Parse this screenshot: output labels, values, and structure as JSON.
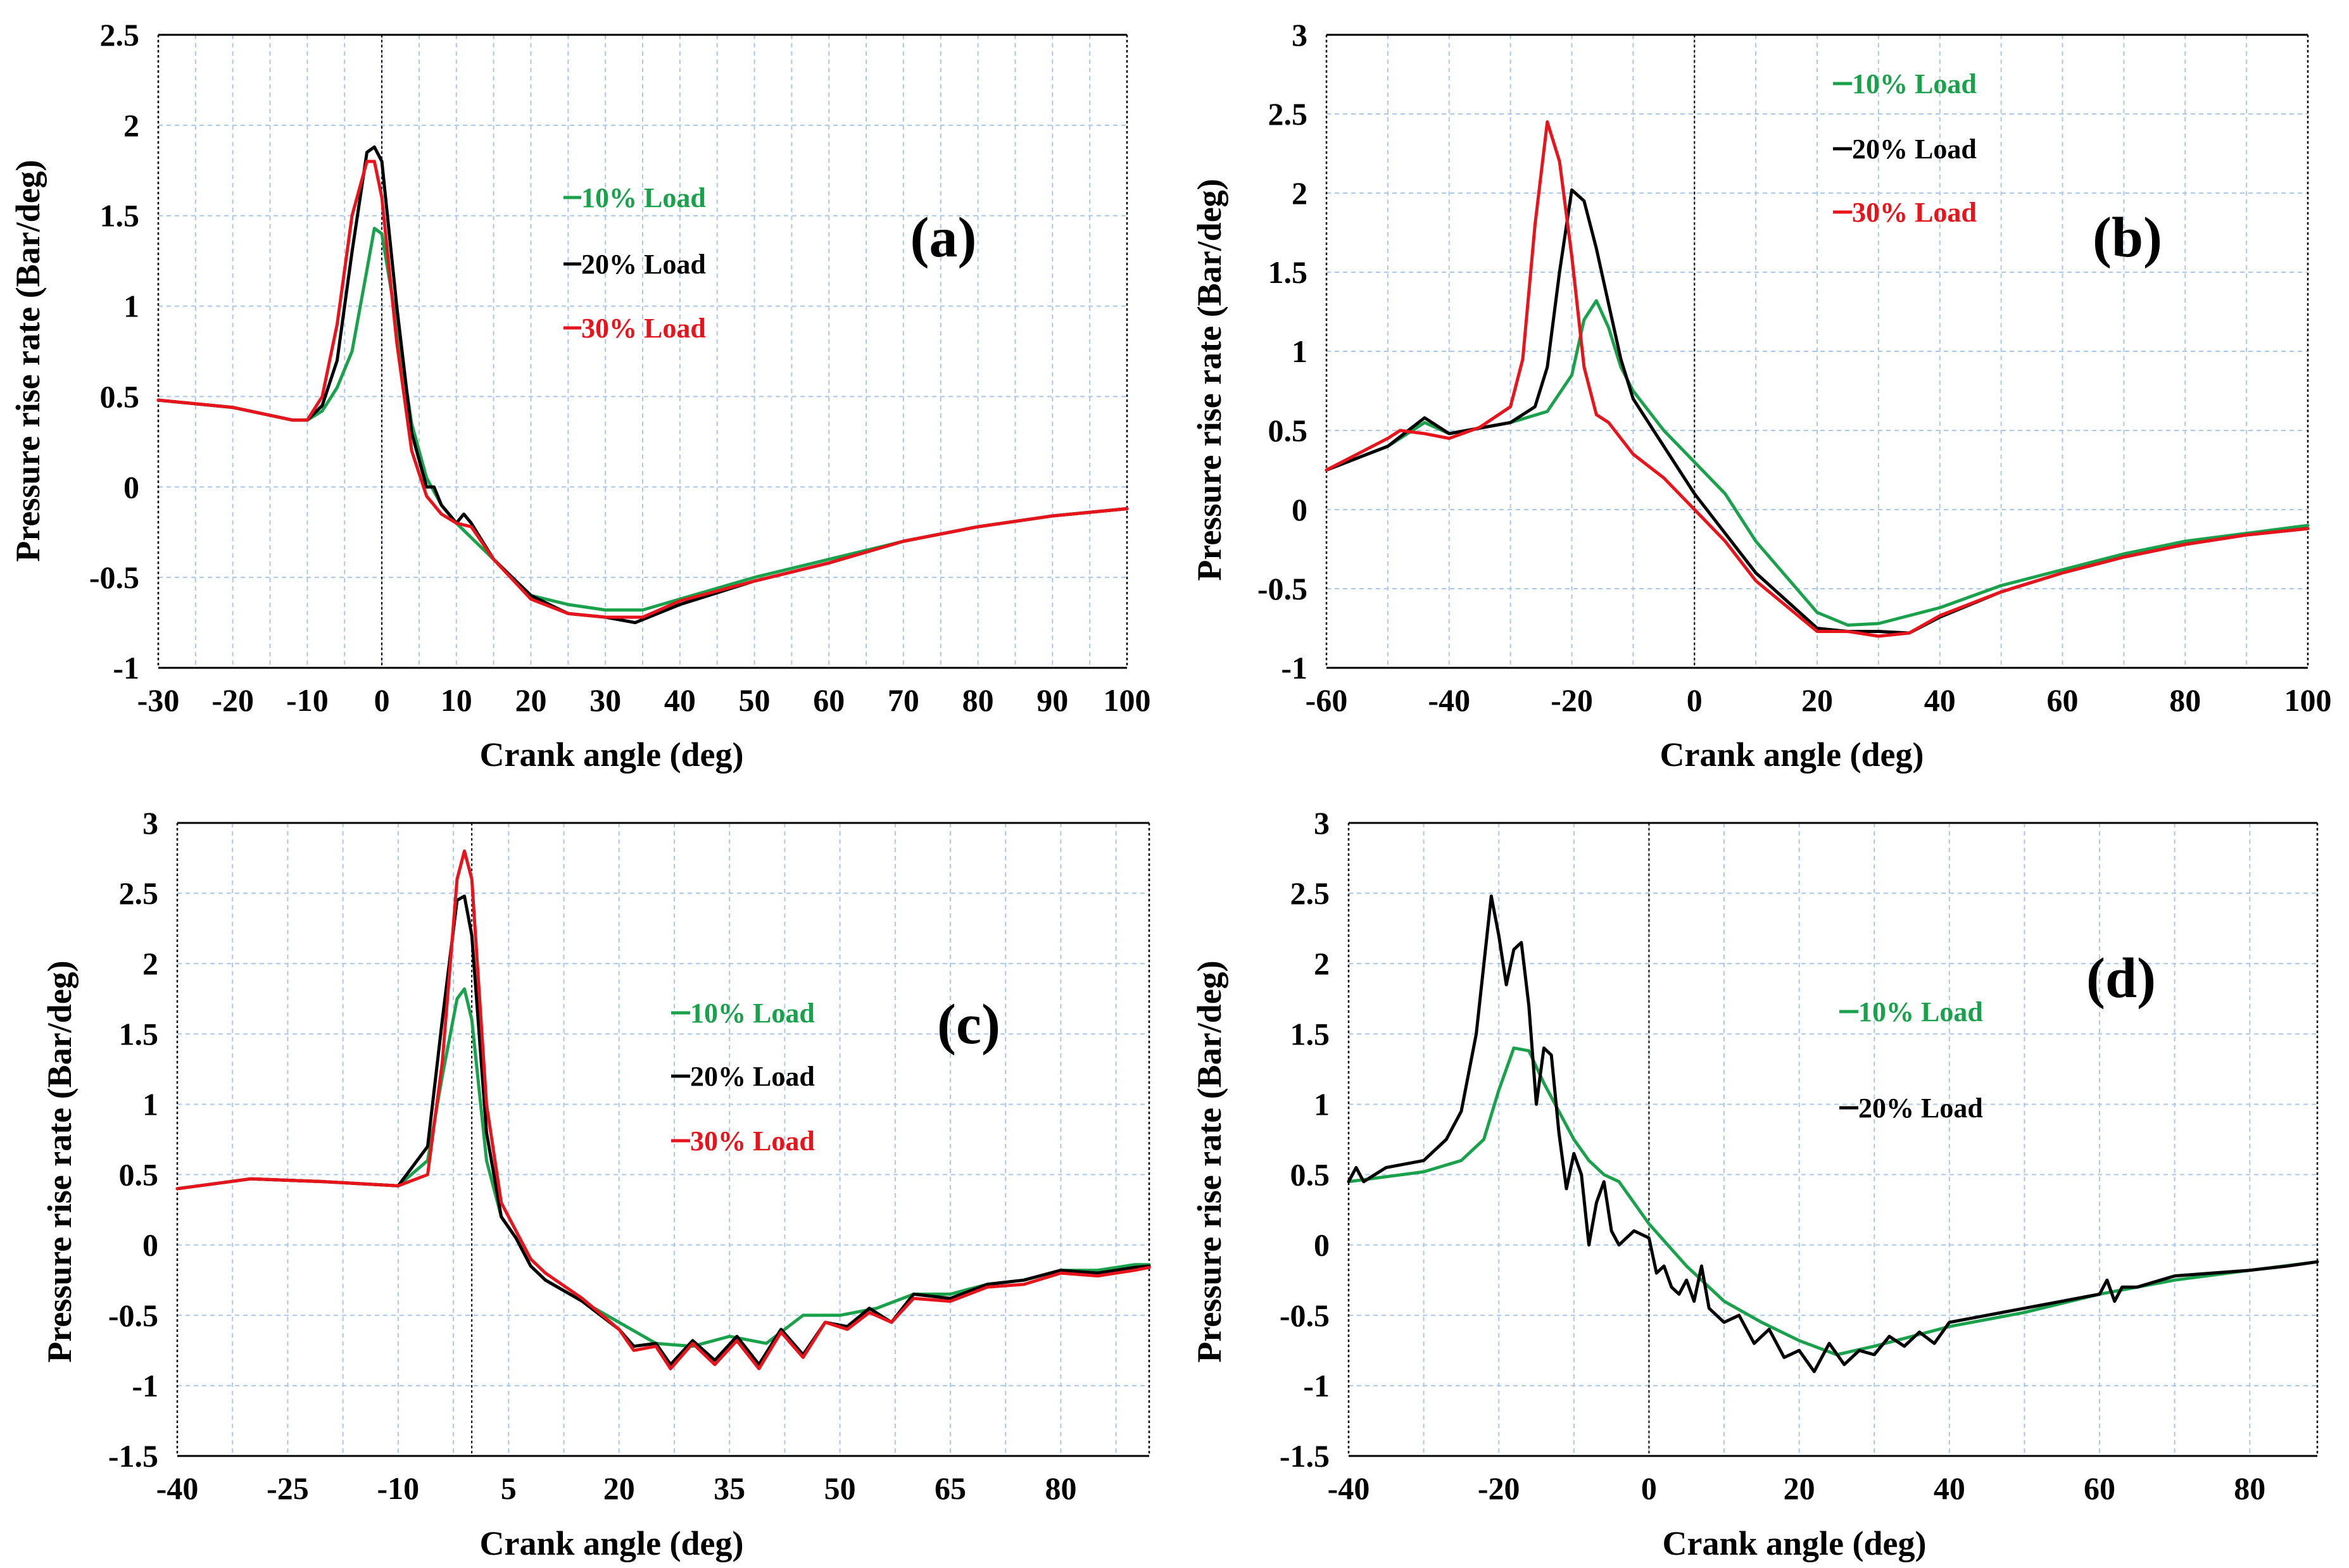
{
  "colors": {
    "green": "#1aa14b",
    "black": "#000000",
    "red": "#e8141b"
  },
  "chart_data": [
    {
      "type": "line",
      "panel": "(a)",
      "xlabel": "Crank angle (deg)",
      "ylabel": "Pressure rise rate (Bar/deg)",
      "xlim": [
        -30,
        100
      ],
      "ylim": [
        -1,
        2.5
      ],
      "xticks": [
        -30,
        -20,
        -10,
        0,
        10,
        20,
        30,
        40,
        50,
        60,
        70,
        80,
        90,
        100
      ],
      "yticks": [
        -1,
        -0.5,
        0,
        0.5,
        1,
        1.5,
        2,
        2.5
      ],
      "legend": [
        "10% Load",
        "20% Load",
        "30% Load"
      ],
      "series": [
        {
          "name": "10% Load",
          "color": "#1aa14b",
          "x": [
            -30,
            -20,
            -12,
            -10,
            -8,
            -6,
            -4,
            -2,
            -1,
            0,
            2,
            4,
            6,
            8,
            10,
            12,
            15,
            20,
            25,
            30,
            35,
            40,
            50,
            60,
            70,
            80,
            90,
            100
          ],
          "y": [
            0.48,
            0.44,
            0.37,
            0.37,
            0.42,
            0.55,
            0.75,
            1.2,
            1.43,
            1.4,
            0.9,
            0.35,
            0.05,
            -0.1,
            -0.2,
            -0.28,
            -0.4,
            -0.6,
            -0.65,
            -0.68,
            -0.68,
            -0.62,
            -0.5,
            -0.4,
            -0.3,
            -0.22,
            -0.16,
            -0.12
          ]
        },
        {
          "name": "20% Load",
          "color": "#000000",
          "x": [
            -30,
            -20,
            -12,
            -10,
            -8,
            -6,
            -4,
            -2,
            -1,
            0,
            2,
            4,
            6,
            7,
            8,
            10,
            11,
            12,
            15,
            20,
            25,
            30,
            34,
            40,
            50,
            60,
            70,
            80,
            90,
            100
          ],
          "y": [
            0.48,
            0.44,
            0.37,
            0.37,
            0.45,
            0.7,
            1.3,
            1.85,
            1.88,
            1.8,
            1.0,
            0.3,
            0.0,
            0.0,
            -0.1,
            -0.2,
            -0.15,
            -0.2,
            -0.4,
            -0.6,
            -0.7,
            -0.72,
            -0.75,
            -0.65,
            -0.52,
            -0.42,
            -0.3,
            -0.22,
            -0.16,
            -0.12
          ]
        },
        {
          "name": "30% Load",
          "color": "#e8141b",
          "x": [
            -30,
            -20,
            -12,
            -10,
            -8,
            -6,
            -4,
            -2,
            -1,
            0,
            2,
            4,
            6,
            8,
            10,
            12,
            15,
            20,
            25,
            30,
            35,
            40,
            50,
            60,
            70,
            80,
            90,
            100
          ],
          "y": [
            0.48,
            0.44,
            0.37,
            0.37,
            0.5,
            0.9,
            1.5,
            1.8,
            1.8,
            1.6,
            0.8,
            0.2,
            -0.05,
            -0.15,
            -0.2,
            -0.22,
            -0.4,
            -0.62,
            -0.7,
            -0.72,
            -0.72,
            -0.63,
            -0.52,
            -0.42,
            -0.3,
            -0.22,
            -0.16,
            -0.12
          ]
        }
      ]
    },
    {
      "type": "line",
      "panel": "(b)",
      "xlabel": "Crank angle (deg)",
      "ylabel": "Pressure rise rate (Bar/deg)",
      "xlim": [
        -60,
        100
      ],
      "ylim": [
        -1,
        3
      ],
      "xticks": [
        -60,
        -40,
        -20,
        0,
        20,
        40,
        60,
        80,
        100
      ],
      "yticks": [
        -1,
        -0.5,
        0,
        0.5,
        1,
        1.5,
        2,
        2.5,
        3
      ],
      "legend": [
        "10% Load",
        "20% Load",
        "30% Load"
      ],
      "series": [
        {
          "name": "10% Load",
          "color": "#1aa14b",
          "x": [
            -60,
            -50,
            -44,
            -40,
            -30,
            -24,
            -20,
            -18,
            -16,
            -14,
            -12,
            -10,
            -5,
            0,
            5,
            10,
            20,
            25,
            30,
            40,
            50,
            60,
            70,
            80,
            90,
            100
          ],
          "y": [
            0.25,
            0.4,
            0.55,
            0.48,
            0.55,
            0.62,
            0.85,
            1.2,
            1.32,
            1.15,
            0.9,
            0.75,
            0.5,
            0.3,
            0.1,
            -0.2,
            -0.65,
            -0.73,
            -0.72,
            -0.62,
            -0.48,
            -0.38,
            -0.28,
            -0.2,
            -0.15,
            -0.1
          ]
        },
        {
          "name": "20% Load",
          "color": "#000000",
          "x": [
            -60,
            -50,
            -44,
            -40,
            -30,
            -26,
            -24,
            -22,
            -20,
            -18,
            -16,
            -14,
            -12,
            -10,
            -5,
            0,
            5,
            10,
            20,
            25,
            30,
            35,
            40,
            50,
            60,
            70,
            80,
            90,
            100
          ],
          "y": [
            0.25,
            0.4,
            0.58,
            0.48,
            0.55,
            0.65,
            0.9,
            1.5,
            2.02,
            1.95,
            1.65,
            1.3,
            0.95,
            0.7,
            0.4,
            0.1,
            -0.15,
            -0.4,
            -0.75,
            -0.77,
            -0.77,
            -0.78,
            -0.68,
            -0.52,
            -0.4,
            -0.3,
            -0.22,
            -0.16,
            -0.12
          ]
        },
        {
          "name": "30% Load",
          "color": "#e8141b",
          "x": [
            -60,
            -50,
            -48,
            -44,
            -40,
            -35,
            -30,
            -28,
            -26,
            -24,
            -22,
            -20,
            -18,
            -16,
            -14,
            -12,
            -10,
            -5,
            0,
            5,
            10,
            20,
            25,
            30,
            35,
            40,
            50,
            60,
            70,
            80,
            90,
            100
          ],
          "y": [
            0.25,
            0.45,
            0.5,
            0.48,
            0.45,
            0.52,
            0.65,
            0.95,
            1.8,
            2.45,
            2.2,
            1.6,
            0.9,
            0.6,
            0.55,
            0.45,
            0.35,
            0.2,
            0.0,
            -0.2,
            -0.45,
            -0.77,
            -0.77,
            -0.8,
            -0.78,
            -0.67,
            -0.52,
            -0.4,
            -0.3,
            -0.22,
            -0.16,
            -0.12
          ]
        }
      ]
    },
    {
      "type": "line",
      "panel": "(c)",
      "xlabel": "Crank angle (deg)",
      "ylabel": "Pressure rise rate (Bar/deg)",
      "xlim": [
        -40,
        92
      ],
      "ylim": [
        -1.5,
        3
      ],
      "xticks": [
        -40,
        -25,
        -10,
        5,
        20,
        35,
        50,
        65,
        80
      ],
      "yticks": [
        -1.5,
        -1,
        -0.5,
        0,
        0.5,
        1,
        1.5,
        2,
        2.5,
        3
      ],
      "legend": [
        "10% Load",
        "20% Load",
        "30% Load"
      ],
      "series": [
        {
          "name": "10% Load",
          "color": "#1aa14b",
          "x": [
            -40,
            -30,
            -20,
            -10,
            -6,
            -4,
            -2,
            -1,
            0,
            1,
            2,
            4,
            6,
            8,
            10,
            15,
            20,
            25,
            30,
            35,
            40,
            45,
            50,
            55,
            60,
            65,
            70,
            75,
            80,
            85,
            90,
            92
          ],
          "y": [
            0.4,
            0.47,
            0.45,
            0.42,
            0.6,
            1.2,
            1.75,
            1.82,
            1.6,
            1.1,
            0.6,
            0.2,
            0.05,
            -0.15,
            -0.25,
            -0.4,
            -0.55,
            -0.7,
            -0.72,
            -0.65,
            -0.7,
            -0.5,
            -0.5,
            -0.45,
            -0.35,
            -0.35,
            -0.28,
            -0.25,
            -0.18,
            -0.18,
            -0.14,
            -0.14
          ]
        },
        {
          "name": "20% Load",
          "color": "#000000",
          "x": [
            -40,
            -30,
            -20,
            -10,
            -6,
            -4,
            -2,
            -1,
            0,
            1,
            2,
            4,
            6,
            8,
            10,
            15,
            20,
            22,
            25,
            27,
            30,
            33,
            36,
            39,
            42,
            45,
            48,
            51,
            54,
            57,
            60,
            65,
            70,
            75,
            80,
            85,
            90,
            92
          ],
          "y": [
            0.4,
            0.47,
            0.45,
            0.42,
            0.7,
            1.6,
            2.45,
            2.48,
            2.2,
            1.5,
            0.8,
            0.2,
            0.05,
            -0.15,
            -0.25,
            -0.4,
            -0.6,
            -0.72,
            -0.7,
            -0.85,
            -0.68,
            -0.82,
            -0.65,
            -0.85,
            -0.6,
            -0.78,
            -0.55,
            -0.58,
            -0.45,
            -0.55,
            -0.35,
            -0.38,
            -0.28,
            -0.25,
            -0.18,
            -0.2,
            -0.16,
            -0.15
          ]
        },
        {
          "name": "30% Load",
          "color": "#e8141b",
          "x": [
            -40,
            -30,
            -20,
            -10,
            -6,
            -4,
            -2,
            -1,
            0,
            1,
            2,
            4,
            6,
            8,
            10,
            15,
            20,
            22,
            25,
            27,
            30,
            33,
            36,
            39,
            42,
            45,
            48,
            51,
            54,
            57,
            60,
            65,
            70,
            75,
            80,
            85,
            90,
            92
          ],
          "y": [
            0.4,
            0.47,
            0.45,
            0.42,
            0.5,
            1.3,
            2.6,
            2.8,
            2.6,
            1.8,
            1.0,
            0.3,
            0.1,
            -0.1,
            -0.2,
            -0.38,
            -0.6,
            -0.75,
            -0.72,
            -0.88,
            -0.7,
            -0.85,
            -0.68,
            -0.88,
            -0.62,
            -0.8,
            -0.55,
            -0.6,
            -0.48,
            -0.55,
            -0.38,
            -0.4,
            -0.3,
            -0.28,
            -0.2,
            -0.22,
            -0.18,
            -0.16
          ]
        }
      ]
    },
    {
      "type": "line",
      "panel": "(d)",
      "xlabel": "Crank angle (deg)",
      "ylabel": "Pressure rise rate (Bar/deg)",
      "xlim": [
        -40,
        89
      ],
      "ylim": [
        -1.5,
        3
      ],
      "xticks": [
        -40,
        -20,
        0,
        20,
        40,
        60,
        80
      ],
      "yticks": [
        -1.5,
        -1,
        -0.5,
        0,
        0.5,
        1,
        1.5,
        2,
        2.5,
        3
      ],
      "legend": [
        "10% Load",
        "20% Load"
      ],
      "series": [
        {
          "name": "10% Load",
          "color": "#1aa14b",
          "x": [
            -40,
            -30,
            -25,
            -22,
            -20,
            -18,
            -16,
            -14,
            -12,
            -10,
            -8,
            -6,
            -4,
            -2,
            0,
            5,
            10,
            15,
            20,
            25,
            30,
            40,
            50,
            60,
            70,
            80,
            89
          ],
          "y": [
            0.45,
            0.52,
            0.6,
            0.75,
            1.1,
            1.4,
            1.38,
            1.15,
            0.95,
            0.75,
            0.6,
            0.5,
            0.45,
            0.3,
            0.15,
            -0.15,
            -0.4,
            -0.55,
            -0.68,
            -0.78,
            -0.72,
            -0.58,
            -0.48,
            -0.35,
            -0.25,
            -0.18,
            -0.12
          ]
        },
        {
          "name": "20% Load",
          "color": "#000000",
          "x": [
            -40,
            -39,
            -38,
            -35,
            -30,
            -27,
            -25,
            -23,
            -21,
            -20,
            -19,
            -18,
            -17,
            -16,
            -15,
            -14,
            -13,
            -12,
            -11,
            -10,
            -9,
            -8,
            -7,
            -6,
            -5,
            -4,
            -2,
            0,
            1,
            2,
            3,
            4,
            5,
            6,
            7,
            8,
            10,
            12,
            14,
            16,
            18,
            20,
            22,
            24,
            26,
            28,
            30,
            32,
            34,
            36,
            38,
            40,
            45,
            50,
            55,
            60,
            61,
            62,
            63,
            65,
            70,
            75,
            80,
            85,
            89
          ],
          "y": [
            0.45,
            0.55,
            0.45,
            0.55,
            0.6,
            0.75,
            0.95,
            1.5,
            2.48,
            2.2,
            1.85,
            2.1,
            2.15,
            1.7,
            1.0,
            1.4,
            1.35,
            0.8,
            0.4,
            0.65,
            0.5,
            0.0,
            0.3,
            0.45,
            0.1,
            0.0,
            0.1,
            0.05,
            -0.2,
            -0.15,
            -0.3,
            -0.35,
            -0.25,
            -0.4,
            -0.15,
            -0.45,
            -0.55,
            -0.5,
            -0.7,
            -0.6,
            -0.8,
            -0.75,
            -0.9,
            -0.7,
            -0.85,
            -0.75,
            -0.78,
            -0.65,
            -0.72,
            -0.62,
            -0.7,
            -0.55,
            -0.5,
            -0.45,
            -0.4,
            -0.35,
            -0.25,
            -0.4,
            -0.3,
            -0.3,
            -0.22,
            -0.2,
            -0.18,
            -0.15,
            -0.12
          ]
        }
      ]
    }
  ]
}
